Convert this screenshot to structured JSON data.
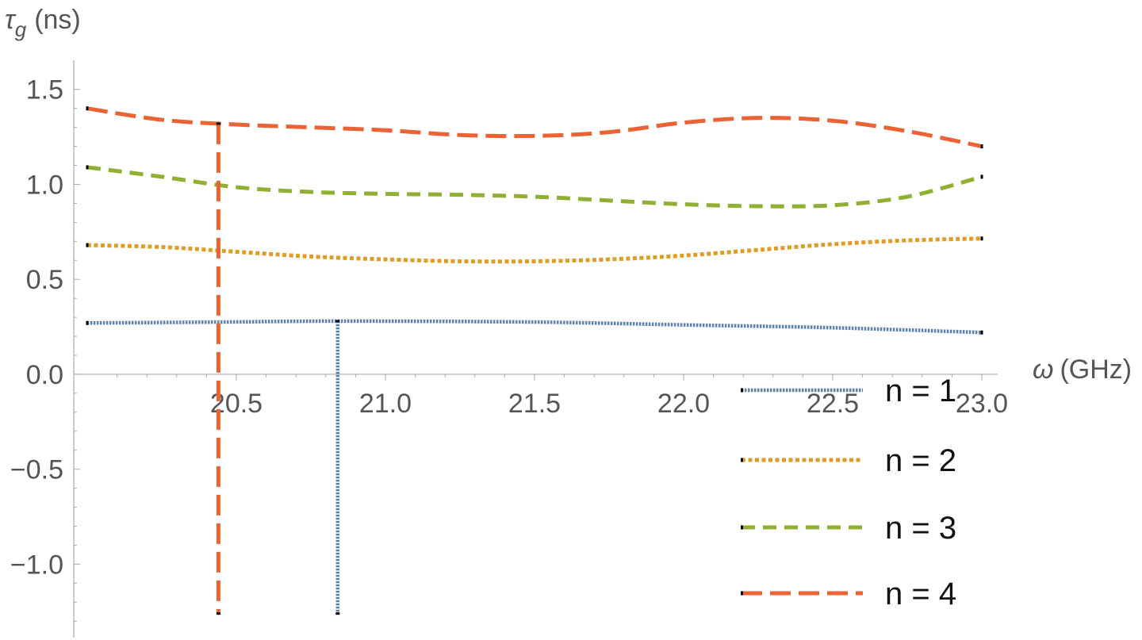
{
  "chart_data": {
    "type": "line",
    "xlabel_symbol": "ω",
    "xlabel_unit": "(GHz)",
    "ylabel_symbol": "τ",
    "ylabel_subscript": "g",
    "ylabel_unit": "(ns)",
    "xlim": [
      20.0,
      23.0
    ],
    "ylim": [
      -1.37,
      1.62
    ],
    "x_ticks": [
      20.5,
      21.0,
      21.5,
      22.0,
      22.5,
      23.0
    ],
    "x_tick_labels": [
      "20.5",
      "21.0",
      "21.5",
      "22.0",
      "22.5",
      "23.0"
    ],
    "y_ticks": [
      -1.0,
      -0.5,
      0.0,
      0.5,
      1.0,
      1.5
    ],
    "y_tick_labels": [
      "−1.0",
      "−0.5",
      "0.0",
      "0.5",
      "1.0",
      "1.5"
    ],
    "legend_position": "bottom-right",
    "series": [
      {
        "name": "n = 1",
        "color": "#5E81B5",
        "style": "dotted",
        "x": [
          20.0,
          20.45,
          20.85,
          21.5,
          22.0,
          22.5,
          23.0
        ],
        "y": [
          0.27,
          0.275,
          0.28,
          0.275,
          0.26,
          0.245,
          0.22
        ]
      },
      {
        "name": "n = 2",
        "color": "#E19C24",
        "style": "dotted-coarse",
        "x": [
          20.0,
          20.25,
          20.5,
          20.75,
          21.0,
          21.25,
          21.5,
          21.75,
          22.0,
          22.25,
          22.5,
          22.75,
          23.0
        ],
        "y": [
          0.68,
          0.67,
          0.645,
          0.62,
          0.605,
          0.595,
          0.595,
          0.605,
          0.625,
          0.655,
          0.685,
          0.705,
          0.715
        ]
      },
      {
        "name": "n = 3",
        "color": "#8FB032",
        "style": "dashed",
        "x": [
          20.0,
          20.25,
          20.5,
          20.75,
          21.0,
          21.25,
          21.5,
          21.75,
          22.0,
          22.25,
          22.5,
          22.75,
          23.0
        ],
        "y": [
          1.09,
          1.04,
          0.985,
          0.96,
          0.95,
          0.945,
          0.935,
          0.915,
          0.895,
          0.885,
          0.89,
          0.935,
          1.04
        ]
      },
      {
        "name": "n = 4",
        "color": "#EB6235",
        "style": "long-dashed",
        "x": [
          20.0,
          20.25,
          20.5,
          20.75,
          21.0,
          21.25,
          21.5,
          21.75,
          22.0,
          22.25,
          22.5,
          22.75,
          23.0
        ],
        "y": [
          1.4,
          1.34,
          1.315,
          1.3,
          1.285,
          1.26,
          1.255,
          1.275,
          1.325,
          1.35,
          1.335,
          1.28,
          1.2
        ]
      }
    ],
    "vertical_lines": [
      {
        "series": "n = 4",
        "x": 20.44,
        "y_top": 1.32,
        "y_bottom": -1.26
      },
      {
        "series": "n = 1",
        "x": 20.84,
        "y_top": 0.28,
        "y_bottom": -1.26
      }
    ]
  }
}
